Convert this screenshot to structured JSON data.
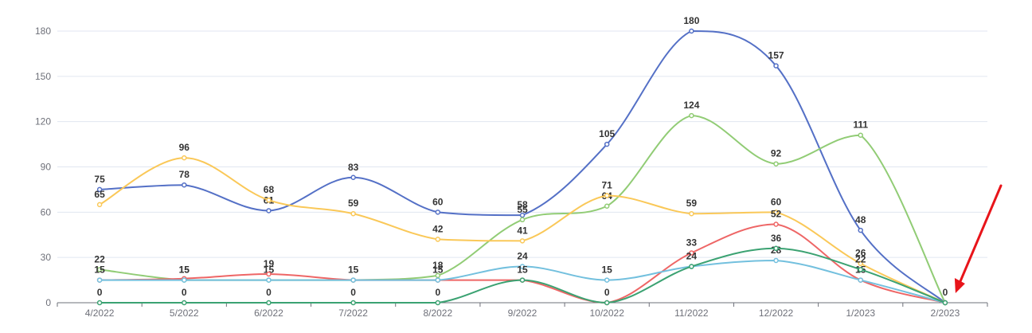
{
  "chart_data": {
    "type": "line",
    "smooth": true,
    "categories": [
      "4/2022",
      "5/2022",
      "6/2022",
      "7/2022",
      "8/2022",
      "9/2022",
      "10/2022",
      "11/2022",
      "12/2022",
      "1/2023",
      "2/2023"
    ],
    "y_ticks": [
      "0",
      "30",
      "60",
      "90",
      "120",
      "150",
      "180"
    ],
    "ylim": [
      0,
      180
    ],
    "grid": true,
    "series": [
      {
        "color": "#5470c6",
        "values": [
          75,
          78,
          61,
          83,
          60,
          58,
          105,
          180,
          157,
          48,
          0
        ],
        "labels": [
          "75",
          "78",
          "61",
          "83",
          "60",
          "58",
          "105",
          "180",
          "157",
          "48",
          ""
        ]
      },
      {
        "color": "#91cc75",
        "values": [
          22,
          15,
          15,
          15,
          18,
          55,
          64,
          124,
          92,
          111,
          0
        ],
        "labels": [
          "22",
          "15",
          "15",
          "",
          "18",
          "55",
          "64",
          "124",
          "92",
          "111",
          ""
        ]
      },
      {
        "color": "#fac858",
        "values": [
          65,
          96,
          68,
          59,
          42,
          41,
          71,
          59,
          60,
          26,
          0
        ],
        "labels": [
          "65",
          "96",
          "68",
          "59",
          "42",
          "41",
          "71",
          "59",
          "60",
          "26",
          ""
        ]
      },
      {
        "color": "#ee6666",
        "values": [
          15,
          16,
          19,
          15,
          15,
          15,
          0,
          33,
          52,
          15,
          0
        ],
        "labels": [
          "",
          "",
          "19",
          "",
          "",
          "",
          "",
          "33",
          "52",
          "",
          ""
        ]
      },
      {
        "color": "#73c0de",
        "values": [
          15,
          15,
          15,
          15,
          15,
          24,
          15,
          24,
          28,
          15,
          0
        ],
        "labels": [
          "15",
          "15",
          "",
          "15",
          "15",
          "24",
          "15",
          "24",
          "28",
          "15",
          ""
        ]
      },
      {
        "color": "#3ba272",
        "values": [
          0,
          0,
          0,
          0,
          0,
          15,
          0,
          24,
          36,
          22,
          0
        ],
        "labels": [
          "0",
          "0",
          "0",
          "0",
          "0",
          "15",
          "0",
          "",
          "36",
          "22",
          "0"
        ]
      }
    ]
  },
  "annotation": {
    "type": "arrow",
    "color": "#e8141a",
    "points_to": "2/2023"
  }
}
